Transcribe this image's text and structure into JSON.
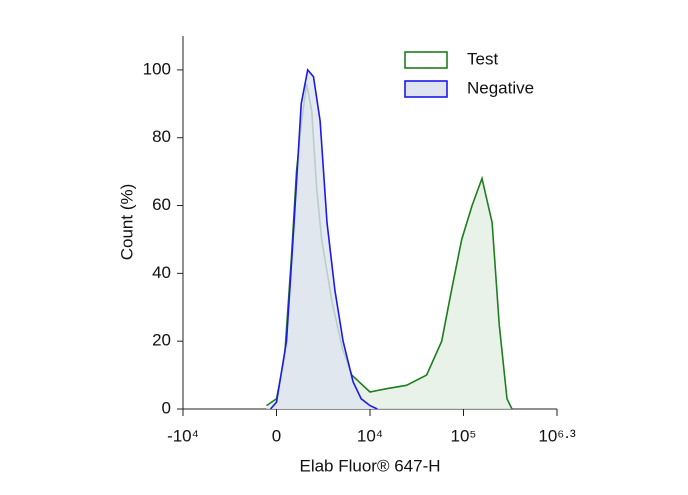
{
  "chart_data": {
    "type": "histogram",
    "x_label": "Elab Fluor® 647-H",
    "y_label": "Count  (%)",
    "xscale": "biexponential",
    "xlim": [
      -10000,
      1995262
    ],
    "xticks": [
      {
        "value": -10000,
        "label": "-10⁴"
      },
      0,
      {
        "value": 10000,
        "label": "10⁴"
      },
      {
        "value": 100000,
        "label": "10⁵"
      },
      {
        "value": 1995262,
        "label": "10⁶·³"
      }
    ],
    "ylim": [
      0,
      110
    ],
    "yticks": [
      0,
      20,
      40,
      60,
      80,
      100
    ],
    "legend": "upper right",
    "series": [
      {
        "name": "Test",
        "color": "#1e7d1e",
        "fill": "#e3efe3",
        "x": [
          -500,
          0,
          400,
          760,
          1030,
          1330,
          1630,
          1970,
          2330,
          2730,
          3670,
          4900,
          6280,
          10000,
          15100,
          24700,
          40400,
          58600,
          74500,
          95600,
          131600,
          181000,
          250000,
          314000,
          403000,
          473000
        ],
        "values": [
          1,
          3,
          15,
          45,
          70,
          85,
          96,
          88,
          65,
          50,
          32,
          18,
          10,
          5,
          6,
          7,
          10,
          20,
          35,
          50,
          60,
          68,
          55,
          25,
          3,
          0
        ]
      },
      {
        "name": "Negative",
        "color": "#1a1aeb",
        "fill": "#dfe3f0",
        "x": [
          -300,
          0,
          500,
          900,
          1300,
          1700,
          2100,
          2600,
          3200,
          4000,
          5000,
          6500,
          8000,
          10000,
          12000
        ],
        "values": [
          0,
          2,
          20,
          55,
          90,
          100,
          98,
          85,
          55,
          35,
          20,
          8,
          3,
          1,
          0
        ]
      }
    ]
  }
}
